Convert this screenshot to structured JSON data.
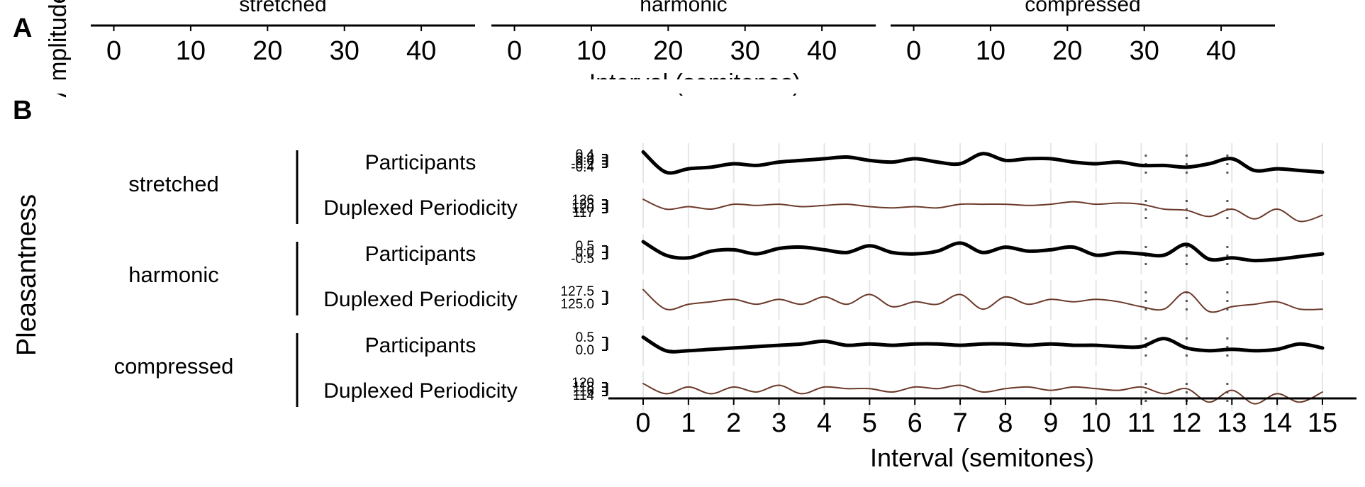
{
  "panel_a": {
    "letter": "A",
    "ylabel": "Amplitude",
    "xlabel": "Interval (semitones)",
    "facets": [
      "stretched",
      "harmonic",
      "compressed"
    ],
    "xticks": [
      0,
      10,
      20,
      30,
      40
    ]
  },
  "panel_b": {
    "letter": "B",
    "ylabel": "Pleasantness",
    "xlabel": "Interval (semitones)",
    "xticks": [
      0,
      1,
      2,
      3,
      4,
      5,
      6,
      7,
      8,
      9,
      10,
      11,
      12,
      13,
      14,
      15
    ],
    "groups": [
      "stretched",
      "harmonic",
      "compressed"
    ],
    "row_labels": [
      "Participants",
      "Duplexed Periodicity"
    ],
    "reference_lines": [
      11.1,
      12.0,
      12.9
    ]
  },
  "chart_data": [
    {
      "type": "line",
      "panel": "A",
      "facets": [
        "stretched",
        "harmonic",
        "compressed"
      ],
      "xlabel": "Interval (semitones)",
      "ylabel": "Amplitude",
      "xlim": [
        -3,
        47
      ],
      "xticks": [
        0,
        10,
        20,
        30,
        40
      ]
    },
    {
      "type": "line",
      "panel": "B",
      "xlabel": "Interval (semitones)",
      "ylabel": "Pleasantness",
      "xlim": [
        0,
        15
      ],
      "xticks": [
        0,
        1,
        2,
        3,
        4,
        5,
        6,
        7,
        8,
        9,
        10,
        11,
        12,
        13,
        14,
        15
      ],
      "x": [
        0,
        0.5,
        1,
        1.5,
        2,
        2.5,
        3,
        3.5,
        4,
        4.5,
        5,
        5.5,
        6,
        6.5,
        7,
        7.5,
        8,
        8.5,
        9,
        9.5,
        10,
        10.5,
        11,
        11.5,
        12,
        12.5,
        13,
        13.5,
        14,
        14.5,
        15
      ],
      "series": [
        {
          "name": "Participants",
          "group": "stretched",
          "color": "#000000",
          "yticks": [
            "0.4",
            "0.2",
            "0.0",
            "-0.2",
            "-0.4"
          ],
          "ylim": [
            -0.4,
            0.4
          ],
          "values": [
            0.35,
            -0.25,
            -0.15,
            -0.1,
            0.0,
            -0.05,
            0.05,
            0.1,
            0.15,
            0.2,
            0.1,
            0.05,
            0.15,
            0.05,
            0.0,
            0.3,
            0.1,
            0.15,
            0.15,
            0.05,
            0.0,
            0.05,
            -0.05,
            -0.05,
            -0.1,
            0.0,
            0.15,
            -0.2,
            -0.15,
            -0.2,
            -0.25
          ]
        },
        {
          "name": "Duplexed Periodicity",
          "group": "stretched",
          "color": "#6b3a2a",
          "yticks": [
            "126",
            "123",
            "120",
            "117"
          ],
          "ylim": [
            116,
            127
          ],
          "values": [
            125.5,
            121.5,
            122.5,
            121.5,
            123.5,
            123,
            123.5,
            122.5,
            123,
            123.5,
            122.5,
            122,
            122.5,
            122,
            123.5,
            123.5,
            123.5,
            123,
            123.5,
            124.5,
            123.5,
            124,
            123.5,
            121.5,
            121,
            118.5,
            121.5,
            117.5,
            121.5,
            116.5,
            119
          ]
        },
        {
          "name": "Participants",
          "group": "harmonic",
          "color": "#000000",
          "yticks": [
            "0.5",
            "0.0",
            "-0.5"
          ],
          "ylim": [
            -0.5,
            0.5
          ],
          "values": [
            0.5,
            0.0,
            -0.1,
            0.15,
            0.2,
            0.05,
            0.25,
            0.3,
            0.2,
            0.1,
            0.35,
            0.1,
            0.05,
            0.15,
            0.45,
            0.1,
            0.3,
            0.15,
            0.2,
            0.3,
            0.0,
            0.1,
            0.05,
            0.0,
            0.4,
            -0.15,
            -0.1,
            -0.2,
            -0.15,
            -0.05,
            0.05
          ]
        },
        {
          "name": "Duplexed Periodicity",
          "group": "harmonic",
          "color": "#6b3a2a",
          "yticks": [
            "127.5",
            "125.0"
          ],
          "ylim": [
            123.5,
            129
          ],
          "values": [
            128.5,
            124.5,
            125.5,
            126,
            126.5,
            125.5,
            126.5,
            125.5,
            127,
            125.5,
            127.5,
            125,
            126,
            125.5,
            127.5,
            124.5,
            127,
            125.5,
            126.5,
            126,
            126.5,
            126,
            125,
            124.5,
            128,
            124,
            125,
            125.5,
            126,
            124.5,
            124.5
          ]
        },
        {
          "name": "Participants",
          "group": "compressed",
          "color": "#000000",
          "yticks": [
            "0.5",
            "0.0"
          ],
          "ylim": [
            -0.4,
            0.6
          ],
          "values": [
            0.45,
            -0.05,
            -0.05,
            0.0,
            0.05,
            0.1,
            0.15,
            0.2,
            0.3,
            0.15,
            0.2,
            0.15,
            0.2,
            0.2,
            0.15,
            0.2,
            0.2,
            0.15,
            0.2,
            0.15,
            0.15,
            0.1,
            0.1,
            0.4,
            0.05,
            -0.05,
            0.0,
            -0.05,
            0.0,
            0.2,
            0.05
          ]
        },
        {
          "name": "Duplexed Periodicity",
          "group": "compressed",
          "color": "#6b3a2a",
          "yticks": [
            "120",
            "118",
            "116",
            "114"
          ],
          "ylim": [
            113,
            121
          ],
          "values": [
            119.5,
            116.5,
            118.5,
            116.5,
            118.5,
            117,
            119,
            116.5,
            118.5,
            118,
            118,
            117,
            118.5,
            118,
            119,
            117,
            118,
            118.5,
            117.5,
            118.5,
            118,
            117.5,
            118.5,
            116.5,
            118,
            114,
            117.5,
            113.5,
            116.5,
            114,
            117
          ]
        }
      ],
      "reference_lines": [
        11.1,
        12.0,
        12.9
      ]
    }
  ]
}
